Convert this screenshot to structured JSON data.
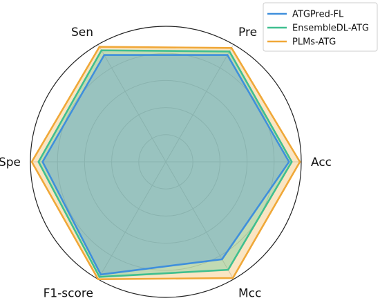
{
  "chart_data": {
    "type": "radar",
    "categories": [
      "Acc",
      "Pre",
      "Sen",
      "Spe",
      "F1-score",
      "Mcc"
    ],
    "r_range": [
      0,
      1
    ],
    "grid": true,
    "legend_placement": "top-right",
    "series": [
      {
        "name": "ATGPred-FL",
        "color": "#3f8fdc",
        "values": [
          0.91,
          0.91,
          0.91,
          0.91,
          0.96,
          0.83
        ]
      },
      {
        "name": "EnsembleDL-ATG",
        "color": "#3fbf8f",
        "values": [
          0.93,
          0.94,
          0.95,
          0.94,
          0.98,
          0.92
        ]
      },
      {
        "name": "PLMs-ATG",
        "color": "#f0a838",
        "values": [
          0.99,
          0.97,
          0.98,
          0.99,
          1.0,
          0.99
        ]
      }
    ]
  }
}
